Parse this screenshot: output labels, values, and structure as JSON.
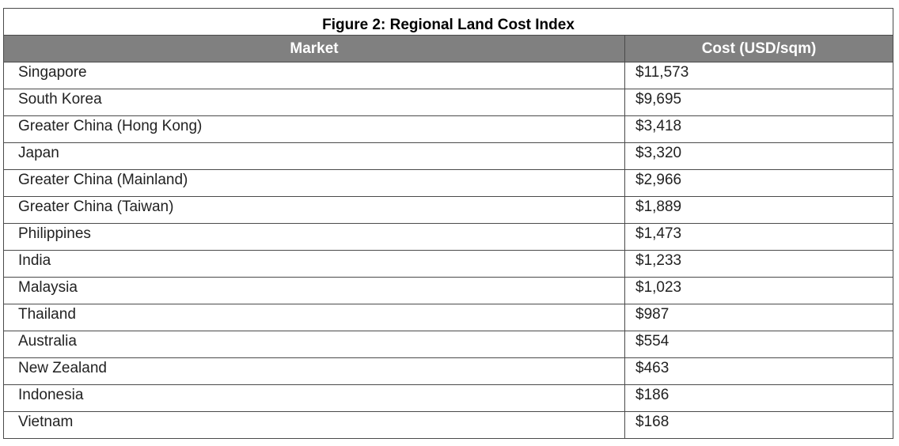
{
  "chart_data": {
    "type": "table",
    "title": "Figure 2: Regional Land Cost Index",
    "columns": [
      "Market",
      "Cost (USD/sqm)"
    ],
    "rows": [
      {
        "market": "Singapore",
        "cost": "$11,573"
      },
      {
        "market": "South Korea",
        "cost": "$9,695"
      },
      {
        "market": "Greater China (Hong Kong)",
        "cost": "$3,418"
      },
      {
        "market": "Japan",
        "cost": "$3,320"
      },
      {
        "market": "Greater China (Mainland)",
        "cost": "$2,966"
      },
      {
        "market": "Greater China (Taiwan)",
        "cost": "$1,889"
      },
      {
        "market": "Philippines",
        "cost": "$1,473"
      },
      {
        "market": "India",
        "cost": "$1,233"
      },
      {
        "market": "Malaysia",
        "cost": "$1,023"
      },
      {
        "market": "Thailand",
        "cost": "$987"
      },
      {
        "market": "Australia",
        "cost": "$554"
      },
      {
        "market": "New Zealand",
        "cost": "$463"
      },
      {
        "market": "Indonesia",
        "cost": "$186"
      },
      {
        "market": "Vietnam",
        "cost": "$168"
      }
    ],
    "values": [
      11573,
      9695,
      3418,
      3320,
      2966,
      1889,
      1473,
      1233,
      1023,
      987,
      554,
      463,
      186,
      168
    ]
  },
  "colors": {
    "header_bg": "#808080",
    "header_text": "#ffffff",
    "border": "#4a4a4a"
  }
}
